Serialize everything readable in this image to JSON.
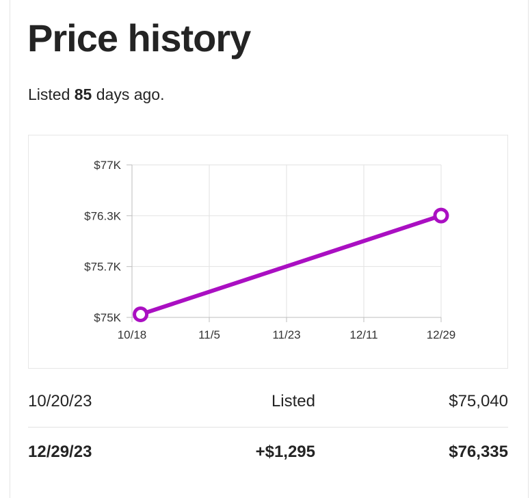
{
  "header": {
    "title": "Price history",
    "listed_prefix": "Listed",
    "listed_days": "85",
    "listed_suffix": "days ago."
  },
  "chart_data": {
    "type": "line",
    "x_ticks": [
      "10/18",
      "11/5",
      "11/23",
      "12/11",
      "12/29"
    ],
    "y_ticks": [
      "$75K",
      "$75.7K",
      "$76.3K",
      "$77K"
    ],
    "y_tick_values": [
      75000,
      75666.67,
      76333.33,
      77000
    ],
    "ylim": [
      75000,
      77000
    ],
    "xlim": [
      "10/18",
      "12/29"
    ],
    "series": [
      {
        "points": [
          {
            "x": "10/20",
            "y": 75040
          },
          {
            "x": "12/29",
            "y": 76335
          }
        ]
      }
    ],
    "grid": true,
    "colors": {
      "line": "#aa0fc2",
      "grid": "#e2e2e2",
      "axis": "#bdbdbd"
    }
  },
  "history": [
    {
      "date": "10/20/23",
      "event": "Listed",
      "price": "$75,040"
    },
    {
      "date": "12/29/23",
      "event": "+$1,295",
      "price": "$76,335"
    }
  ]
}
